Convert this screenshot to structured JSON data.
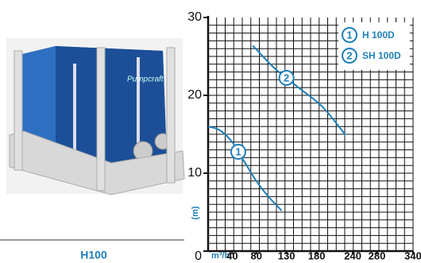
{
  "chart_data": {
    "type": "line",
    "caption": "H100",
    "x_label": "m³/h",
    "y_label": "(m)",
    "xlim": [
      0,
      340
    ],
    "xticks": [
      40,
      80,
      130,
      180,
      240,
      280,
      340
    ],
    "ylim": [
      0,
      30
    ],
    "yticks": [
      0,
      10,
      20,
      30
    ],
    "grid": true,
    "legend": "top-right",
    "series": [
      {
        "name": "H 100D",
        "marker": "1",
        "color": "#1e7fb8",
        "x": [
          0,
          20,
          40,
          60,
          80,
          100,
          122
        ],
        "values": [
          16,
          15.5,
          14,
          11.5,
          9,
          7,
          5.2
        ]
      },
      {
        "name": "SH 100D",
        "marker": "2",
        "color": "#1e7fb8",
        "x": [
          74,
          110,
          150,
          190,
          228
        ],
        "values": [
          26.4,
          23.5,
          21,
          18.5,
          14.9
        ]
      }
    ]
  }
}
